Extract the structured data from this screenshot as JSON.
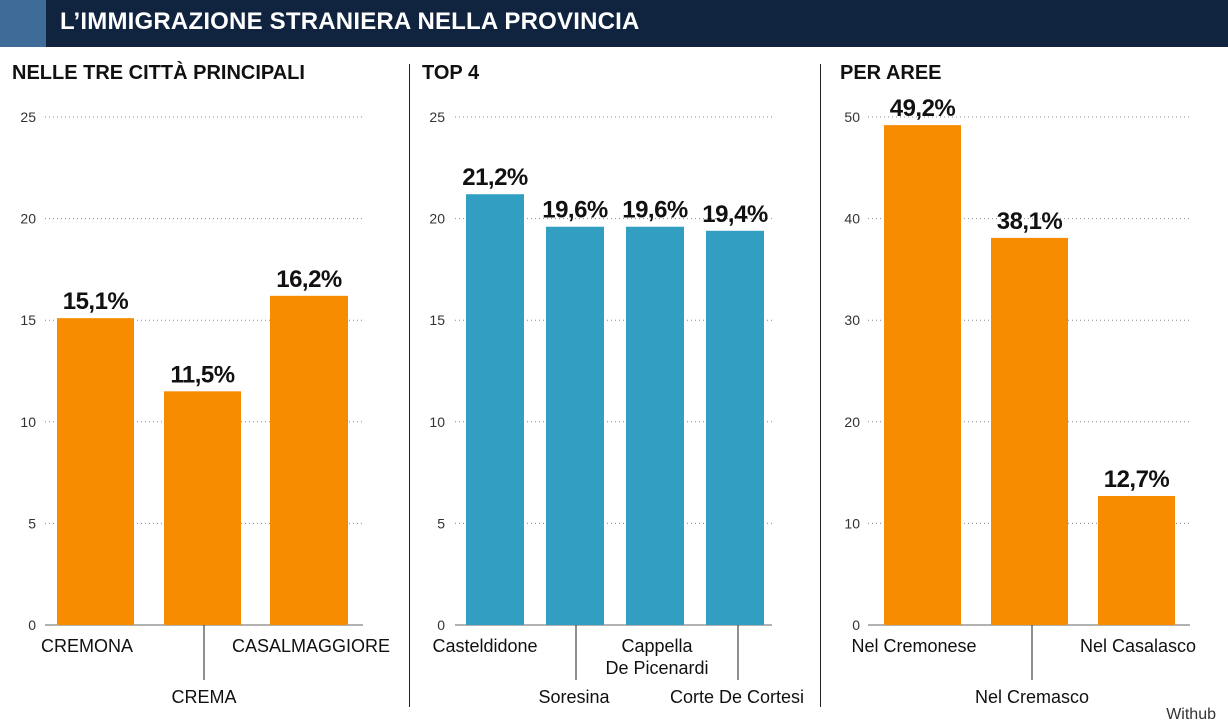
{
  "header": {
    "title": "L’IMMIGRAZIONE STRANIERA NELLA PROVINCIA"
  },
  "source": "Withub",
  "colors": {
    "header_bg": "#10243f",
    "header_accent": "#3f6b98",
    "orange": "#f78c00",
    "blue": "#329ec2"
  },
  "chart_data": [
    {
      "type": "bar",
      "title": "NELLE TRE CITTÀ PRINCIPALI",
      "categories": [
        "CREMONA",
        "CREMA",
        "CASALMAGGIORE"
      ],
      "values": [
        15.1,
        11.5,
        16.2
      ],
      "value_labels": [
        "15,1%",
        "11,5%",
        "16,2%"
      ],
      "ylim": [
        0,
        25
      ],
      "yticks": [
        0,
        5,
        10,
        15,
        20,
        25
      ],
      "color": "#f78c00",
      "grid": true,
      "label_layout": "staggered"
    },
    {
      "type": "bar",
      "title": "TOP 4",
      "categories": [
        "Casteldidone",
        "Soresina",
        "Cappella De Picenardi",
        "Corte De Cortesi"
      ],
      "category_lines": [
        [
          "Casteldidone"
        ],
        [
          "Soresina"
        ],
        [
          "Cappella",
          "De Picenardi"
        ],
        [
          "Corte De Cortesi"
        ]
      ],
      "values": [
        21.2,
        19.6,
        19.6,
        19.4
      ],
      "value_labels": [
        "21,2%",
        "19,6%",
        "19,6%",
        "19,4%"
      ],
      "ylim": [
        0,
        25
      ],
      "yticks": [
        0,
        5,
        10,
        15,
        20,
        25
      ],
      "color": "#329ec2",
      "grid": true,
      "label_layout": "staggered"
    },
    {
      "type": "bar",
      "title": "PER AREE",
      "categories": [
        "Nel Cremonese",
        "Nel Cremasco",
        "Nel Casalasco"
      ],
      "values": [
        49.2,
        38.1,
        12.7
      ],
      "value_labels": [
        "49,2%",
        "38,1%",
        "12,7%"
      ],
      "ylim": [
        0,
        50
      ],
      "yticks": [
        0,
        10,
        20,
        30,
        40,
        50
      ],
      "color": "#f78c00",
      "grid": true,
      "label_layout": "staggered"
    }
  ]
}
